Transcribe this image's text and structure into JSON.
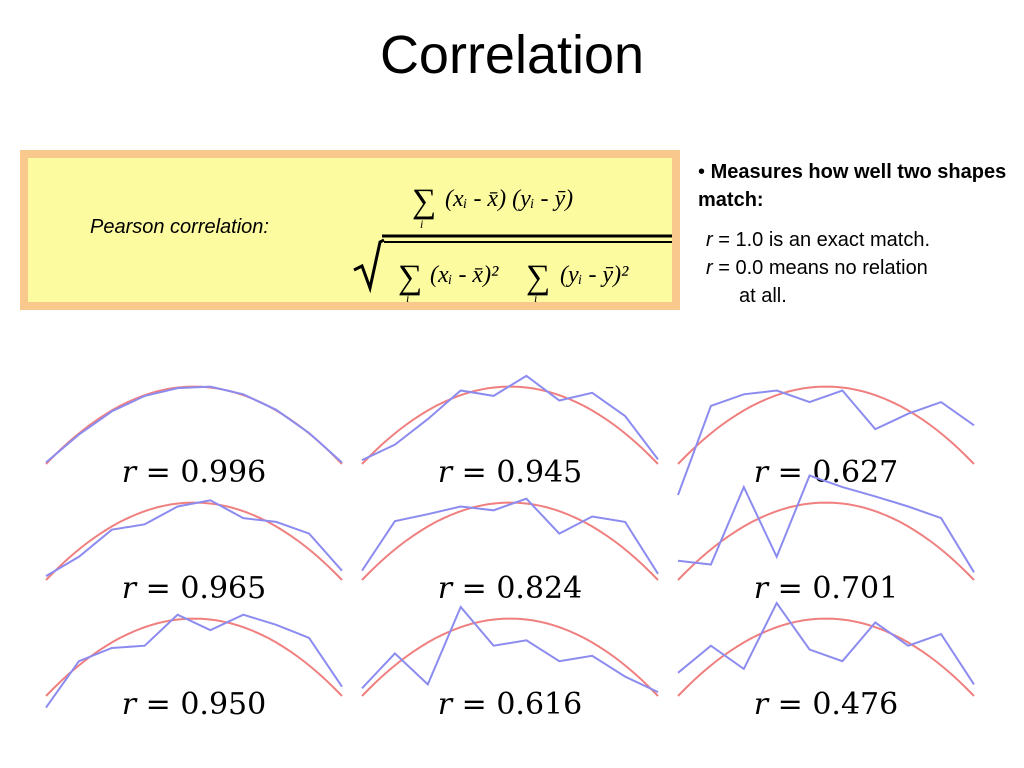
{
  "title": "Correlation",
  "formula": {
    "label": "Pearson correlation:",
    "sum_symbol": "∑",
    "numerator": "(xᵢ - x̄)  (yᵢ - ȳ)",
    "denominator_left": "(xᵢ - x̄)²",
    "denominator_right": "(yᵢ - ȳ)²",
    "index": "i"
  },
  "bullets": {
    "marker": "•",
    "heading": "Measures how well two shapes match:",
    "lines": [
      {
        "r": "r",
        "text": " = 1.0 is an exact match."
      },
      {
        "r": "r",
        "text": " = 0.0 means no relation"
      },
      {
        "r": "",
        "text": "at all."
      }
    ]
  },
  "colors": {
    "box_fill": "#fdfb9f",
    "box_border": "#f9c88c",
    "reference_curve": "#f07f7f",
    "shape_curve": "#8c8cf0"
  },
  "chart_data": {
    "type": "line",
    "reference_curve": "parabola",
    "panels": [
      {
        "label": "r = 0.996",
        "r": 0.996,
        "y": [
          0.02,
          0.38,
          0.68,
          0.88,
          0.98,
          1.0,
          0.9,
          0.7,
          0.4,
          0.02
        ]
      },
      {
        "label": "r = 0.945",
        "r": 0.945,
        "y": [
          0.05,
          0.25,
          0.58,
          0.95,
          0.88,
          1.14,
          0.82,
          0.92,
          0.62,
          0.06
        ]
      },
      {
        "label": "r = 0.627",
        "r": 0.627,
        "y": [
          -0.4,
          0.75,
          0.9,
          0.95,
          0.8,
          0.95,
          0.45,
          0.65,
          0.8,
          0.5
        ]
      },
      {
        "label": "r = 0.965",
        "r": 0.965,
        "y": [
          0.05,
          0.3,
          0.65,
          0.72,
          0.95,
          1.03,
          0.8,
          0.75,
          0.6,
          0.12
        ]
      },
      {
        "label": "r = 0.824",
        "r": 0.824,
        "y": [
          0.12,
          0.76,
          0.85,
          0.95,
          0.9,
          1.05,
          0.6,
          0.82,
          0.75,
          0.08
        ]
      },
      {
        "label": "r = 0.701",
        "r": 0.701,
        "y": [
          0.25,
          0.2,
          1.2,
          0.3,
          1.35,
          1.2,
          1.08,
          0.95,
          0.8,
          0.1
        ]
      },
      {
        "label": "r = 0.950",
        "r": 0.95,
        "y": [
          -0.15,
          0.45,
          0.62,
          0.65,
          1.05,
          0.85,
          1.05,
          0.92,
          0.75,
          0.12
        ]
      },
      {
        "label": "r = 0.616",
        "r": 0.616,
        "y": [
          0.1,
          0.55,
          0.15,
          1.15,
          0.65,
          0.72,
          0.45,
          0.52,
          0.25,
          0.05
        ]
      },
      {
        "label": "r = 0.476",
        "r": 0.476,
        "y": [
          0.3,
          0.65,
          0.35,
          1.2,
          0.6,
          0.45,
          0.95,
          0.65,
          0.8,
          0.15
        ]
      }
    ]
  }
}
